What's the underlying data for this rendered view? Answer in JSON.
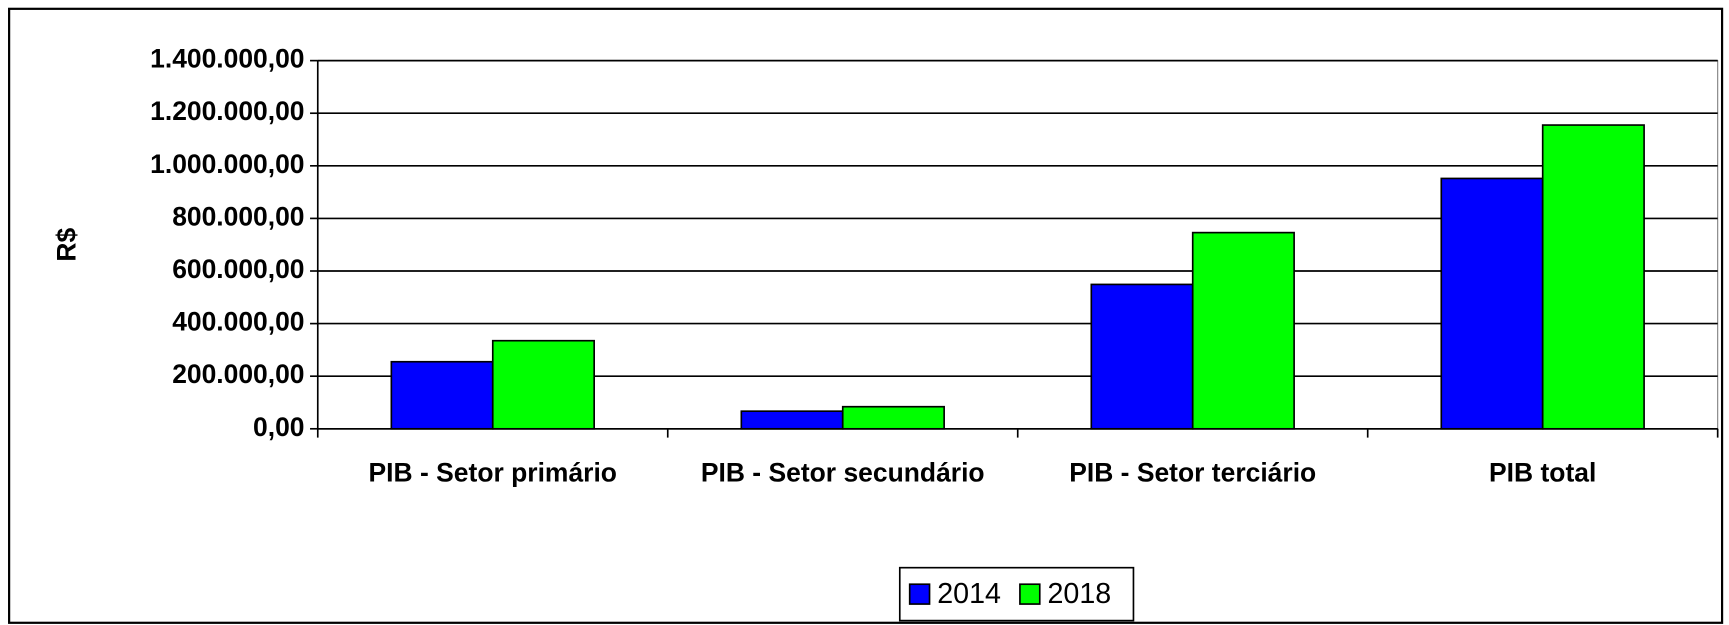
{
  "chart_data": {
    "type": "bar",
    "y_label": "R$",
    "categories": [
      "PIB - Setor primário",
      "PIB - Setor secundário",
      "PIB - Setor terciário",
      "PIB total"
    ],
    "series": [
      {
        "name": "2014",
        "color": "#0000ff",
        "values": [
          255000,
          67000,
          549000,
          952000
        ]
      },
      {
        "name": "2018",
        "color": "#00ff00",
        "values": [
          335000,
          84000,
          746000,
          1155000
        ]
      }
    ],
    "ylim": [
      0,
      1400000
    ],
    "yticks": [
      {
        "value": 0,
        "label": "0,00"
      },
      {
        "value": 200000,
        "label": "200.000,00"
      },
      {
        "value": 400000,
        "label": "400.000,00"
      },
      {
        "value": 600000,
        "label": "600.000,00"
      },
      {
        "value": 800000,
        "label": "800.000,00"
      },
      {
        "value": 1000000,
        "label": "1.000.000,00"
      },
      {
        "value": 1200000,
        "label": "1.200.000,00"
      },
      {
        "value": 1400000,
        "label": "1.400.000,00"
      }
    ],
    "grid": true,
    "legend": "bottom"
  }
}
